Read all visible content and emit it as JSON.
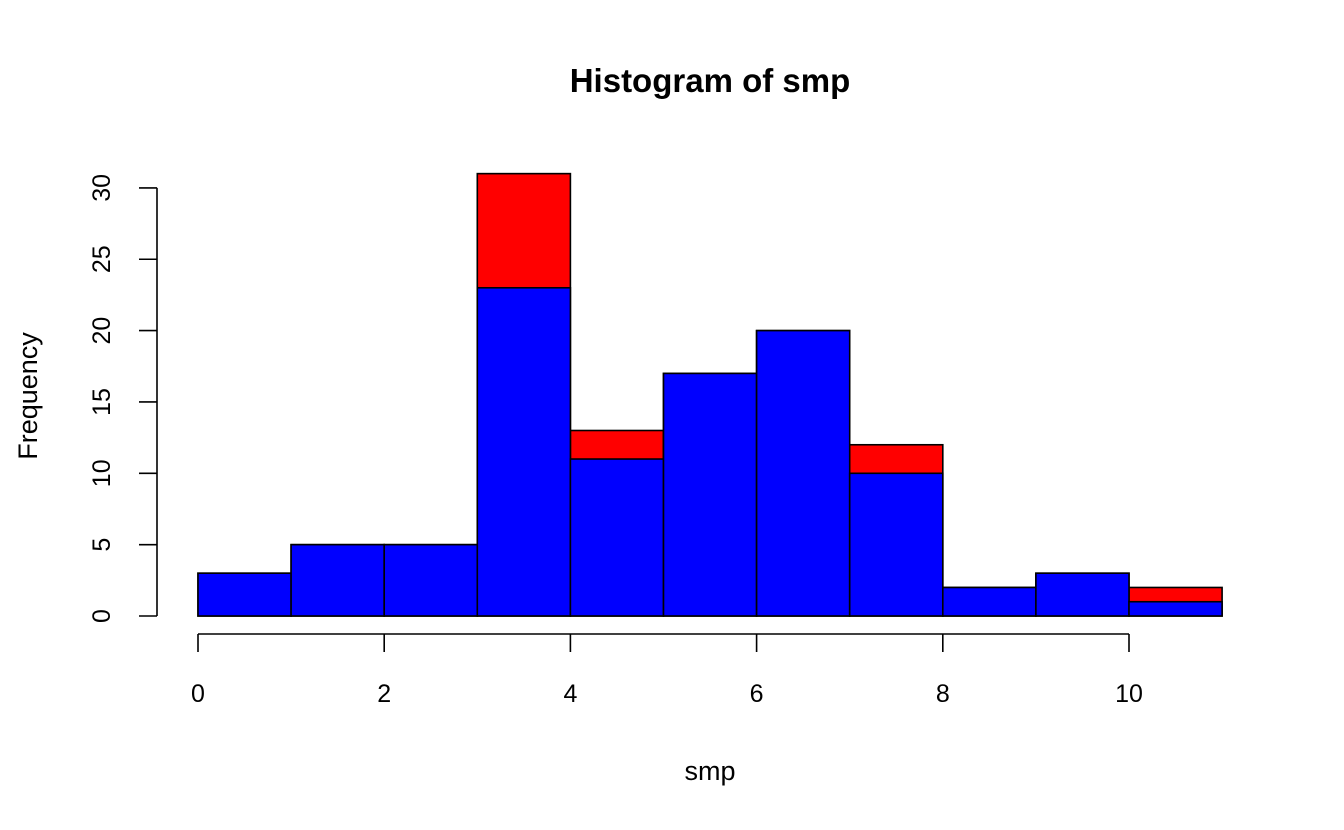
{
  "chart_data": {
    "type": "bar",
    "subtype": "stacked-histogram",
    "title": "Histogram of smp",
    "xlabel": "smp",
    "ylabel": "Frequency",
    "bin_edges": [
      0,
      1,
      2,
      3,
      4,
      5,
      6,
      7,
      8,
      9,
      10,
      11
    ],
    "series": [
      {
        "color": "#0000ff",
        "values": [
          3,
          5,
          5,
          23,
          11,
          17,
          20,
          10,
          2,
          3,
          1
        ]
      },
      {
        "color": "#ff0000",
        "values": [
          3,
          5,
          5,
          31,
          13,
          17,
          20,
          12,
          2,
          3,
          2
        ]
      }
    ],
    "xticks": [
      0,
      2,
      4,
      6,
      8,
      10
    ],
    "yticks": [
      0,
      5,
      10,
      15,
      20,
      25,
      30
    ],
    "xlim": [
      0,
      11
    ],
    "ylim": [
      0,
      31
    ],
    "grid": false,
    "legend": "none"
  }
}
